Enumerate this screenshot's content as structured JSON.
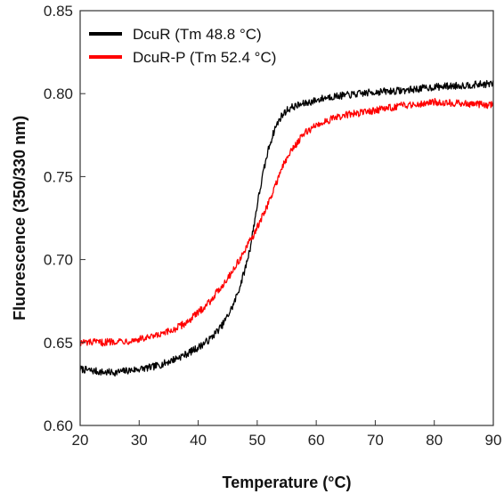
{
  "chart_data": {
    "type": "line",
    "title": "",
    "xlabel": "Temperature (°C)",
    "ylabel": "Fluorescence (350/330 nm)",
    "xlim": [
      20,
      90
    ],
    "ylim": [
      0.6,
      0.85
    ],
    "xticks": [
      20,
      30,
      40,
      50,
      60,
      70,
      80,
      90
    ],
    "xtick_labels": [
      "20",
      "30",
      "40",
      "50",
      "60",
      "70",
      "80",
      "90"
    ],
    "yticks": [
      0.6,
      0.65,
      0.7,
      0.75,
      0.8,
      0.85
    ],
    "ytick_labels": [
      "0.60",
      "0.65",
      "0.70",
      "0.75",
      "0.80",
      "0.85"
    ],
    "grid": false,
    "legend_position": "top-left",
    "series": [
      {
        "name": "DcuR  (Tm 48.8 °C)",
        "color": "#000000",
        "x": [
          20,
          22,
          24,
          26,
          28,
          30,
          32,
          34,
          36,
          38,
          40,
          42,
          44,
          45,
          46,
          47,
          48,
          48.8,
          49.5,
          50,
          51,
          52,
          53,
          54,
          55,
          56,
          58,
          60,
          62,
          65,
          70,
          75,
          80,
          85,
          90
        ],
        "values": [
          0.634,
          0.633,
          0.632,
          0.632,
          0.633,
          0.634,
          0.635,
          0.637,
          0.64,
          0.643,
          0.647,
          0.652,
          0.66,
          0.666,
          0.673,
          0.683,
          0.695,
          0.707,
          0.722,
          0.733,
          0.752,
          0.768,
          0.779,
          0.786,
          0.79,
          0.792,
          0.794,
          0.796,
          0.798,
          0.799,
          0.801,
          0.802,
          0.804,
          0.805,
          0.806
        ]
      },
      {
        "name": "DcuR-P  (Tm 52.4 °C)",
        "color": "#ff0000",
        "x": [
          20,
          22,
          24,
          26,
          28,
          30,
          32,
          34,
          36,
          38,
          40,
          42,
          44,
          46,
          48,
          50,
          52,
          52.4,
          54,
          56,
          58,
          60,
          62,
          65,
          70,
          75,
          80,
          85,
          90
        ],
        "values": [
          0.65,
          0.65,
          0.65,
          0.651,
          0.651,
          0.652,
          0.653,
          0.655,
          0.658,
          0.662,
          0.668,
          0.675,
          0.684,
          0.694,
          0.706,
          0.719,
          0.735,
          0.738,
          0.754,
          0.767,
          0.776,
          0.781,
          0.784,
          0.787,
          0.79,
          0.793,
          0.795,
          0.794,
          0.793
        ]
      }
    ]
  }
}
